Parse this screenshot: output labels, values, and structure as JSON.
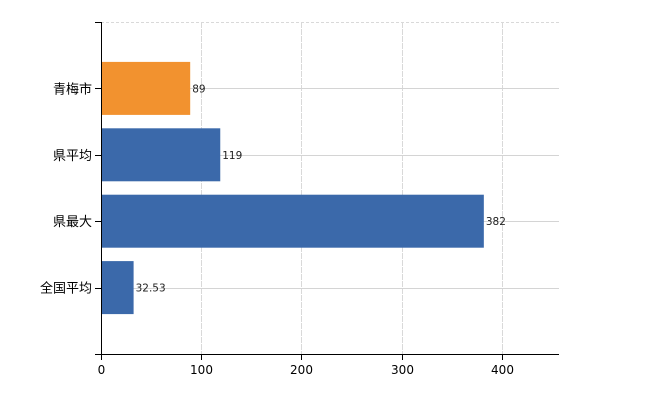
{
  "chart_data": {
    "type": "bar",
    "orientation": "horizontal",
    "categories": [
      "青梅市",
      "県平均",
      "県最大",
      "全国平均"
    ],
    "values": [
      89,
      119,
      382,
      32.53
    ],
    "data_labels": [
      "89",
      "119",
      "382",
      "32.53"
    ],
    "bar_colors": [
      "#f2922f",
      "#3b69aa",
      "#3b69aa",
      "#3b69aa"
    ],
    "x_ticks": [
      0,
      100,
      200,
      300,
      400
    ],
    "xlim": [
      0,
      457
    ],
    "grid": true,
    "legend": "none",
    "title": "",
    "xlabel": "",
    "ylabel": ""
  }
}
